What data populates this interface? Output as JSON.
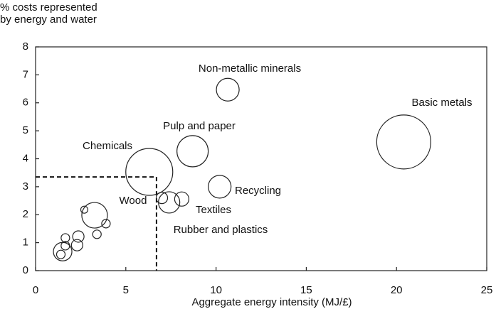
{
  "chart_data": {
    "type": "bubble",
    "y_label": [
      "% costs represented",
      "by energy and water"
    ],
    "x_label": "Aggregate energy intensity (MJ/£)",
    "xlim": [
      0,
      25
    ],
    "xticks": [
      0,
      5,
      10,
      15,
      20,
      25
    ],
    "ylim": [
      0,
      8
    ],
    "yticks": [
      0,
      1,
      2,
      3,
      4,
      5,
      6,
      7,
      8
    ],
    "color": "#222222",
    "x": [
      10.65,
      20.4,
      8.7,
      6.3,
      10.2,
      7.0,
      8.1,
      7.4,
      3.27,
      2.7,
      3.9,
      3.4,
      2.37,
      2.3,
      1.65,
      1.65,
      1.5,
      1.4
    ],
    "values": [
      6.47,
      4.6,
      4.27,
      3.53,
      3.0,
      2.6,
      2.56,
      2.44,
      1.98,
      2.18,
      1.68,
      1.3,
      1.22,
      0.91,
      1.17,
      0.89,
      0.68,
      0.58
    ],
    "sizes": [
      16,
      38,
      22,
      33,
      16,
      8,
      10,
      15,
      18,
      5,
      6,
      6,
      8,
      8,
      6,
      6,
      13,
      6
    ],
    "labels": [
      "Non-metallic minerals",
      "Basic metals",
      "Pulp and paper",
      "Chemicals",
      "Recycling",
      "Wood",
      "Textiles",
      "Rubber and plastics",
      null,
      null,
      null,
      null,
      null,
      null,
      null,
      null,
      null,
      null
    ],
    "reference": {
      "x": 6.7,
      "y": 3.35
    }
  }
}
